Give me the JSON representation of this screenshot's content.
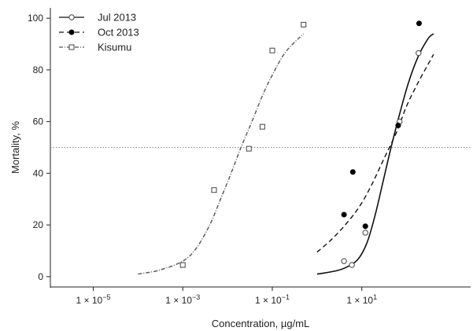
{
  "chart_data": {
    "type": "scatter",
    "title": "",
    "xlabel": "Concentration, µg/mL",
    "ylabel": "Mortality, %",
    "x_scale": "log",
    "x_ticks": [
      {
        "value": 1e-05,
        "label_main": "1 × 10",
        "label_exp": "−5"
      },
      {
        "value": 0.001,
        "label_main": "1 × 10",
        "label_exp": "−3"
      },
      {
        "value": 0.1,
        "label_main": "1 × 10",
        "label_exp": "−1"
      },
      {
        "value": 10,
        "label_main": "1 × 10",
        "label_exp": "1"
      }
    ],
    "y_ticks": [
      0,
      20,
      40,
      60,
      80,
      100
    ],
    "xlim": [
      1.1e-06,
      2700
    ],
    "ylim": [
      -4,
      104
    ],
    "grid": false,
    "legend_position": "top-left",
    "reference_line": {
      "y": 50
    },
    "series": [
      {
        "name": "Jul 2013",
        "marker": "open-circle",
        "line_style": "solid",
        "color": "#111111",
        "points": [
          {
            "x": 4.0,
            "y": 6
          },
          {
            "x": 6.0,
            "y": 4.5
          },
          {
            "x": 12.0,
            "y": 17
          },
          {
            "x": 70.0,
            "y": 60
          },
          {
            "x": 185.0,
            "y": 86.5
          }
        ],
        "curve": [
          {
            "x": 1.0,
            "y": 1
          },
          {
            "x": 2.0,
            "y": 1.8
          },
          {
            "x": 4.0,
            "y": 3.2
          },
          {
            "x": 8.0,
            "y": 6.5
          },
          {
            "x": 13.0,
            "y": 13
          },
          {
            "x": 20.0,
            "y": 24
          },
          {
            "x": 30.0,
            "y": 37
          },
          {
            "x": 45.0,
            "y": 50
          },
          {
            "x": 70.0,
            "y": 63
          },
          {
            "x": 110.0,
            "y": 75
          },
          {
            "x": 180.0,
            "y": 85
          },
          {
            "x": 300.0,
            "y": 92
          },
          {
            "x": 400.0,
            "y": 94
          }
        ]
      },
      {
        "name": "Oct 2013",
        "marker": "filled-circle",
        "line_style": "dashed",
        "color": "#111111",
        "points": [
          {
            "x": 4.0,
            "y": 24
          },
          {
            "x": 6.3,
            "y": 40.5
          },
          {
            "x": 12.0,
            "y": 19.5
          },
          {
            "x": 65.0,
            "y": 58.5
          },
          {
            "x": 190.0,
            "y": 98
          }
        ],
        "curve": [
          {
            "x": 1.0,
            "y": 9.5
          },
          {
            "x": 2.0,
            "y": 14
          },
          {
            "x": 4.0,
            "y": 19.5
          },
          {
            "x": 8.0,
            "y": 26
          },
          {
            "x": 15.0,
            "y": 34
          },
          {
            "x": 30.0,
            "y": 45
          },
          {
            "x": 60.0,
            "y": 56
          },
          {
            "x": 100.0,
            "y": 66
          },
          {
            "x": 180.0,
            "y": 75
          },
          {
            "x": 300.0,
            "y": 82
          },
          {
            "x": 400.0,
            "y": 86
          }
        ]
      },
      {
        "name": "Kisumu",
        "marker": "open-square",
        "line_style": "dash-dot",
        "color": "#555555",
        "points": [
          {
            "x": 0.001,
            "y": 4.5
          },
          {
            "x": 0.005,
            "y": 33.5
          },
          {
            "x": 0.03,
            "y": 49.5
          },
          {
            "x": 0.06,
            "y": 58
          },
          {
            "x": 0.1,
            "y": 87.5
          },
          {
            "x": 0.5,
            "y": 97.5
          }
        ],
        "curve": [
          {
            "x": 0.0001,
            "y": 1
          },
          {
            "x": 0.0003,
            "y": 2.5
          },
          {
            "x": 0.001,
            "y": 6
          },
          {
            "x": 0.002,
            "y": 11
          },
          {
            "x": 0.004,
            "y": 20
          },
          {
            "x": 0.007,
            "y": 30
          },
          {
            "x": 0.012,
            "y": 40
          },
          {
            "x": 0.02,
            "y": 50
          },
          {
            "x": 0.035,
            "y": 60
          },
          {
            "x": 0.06,
            "y": 70
          },
          {
            "x": 0.1,
            "y": 78
          },
          {
            "x": 0.2,
            "y": 87
          },
          {
            "x": 0.5,
            "y": 94
          }
        ]
      }
    ]
  }
}
